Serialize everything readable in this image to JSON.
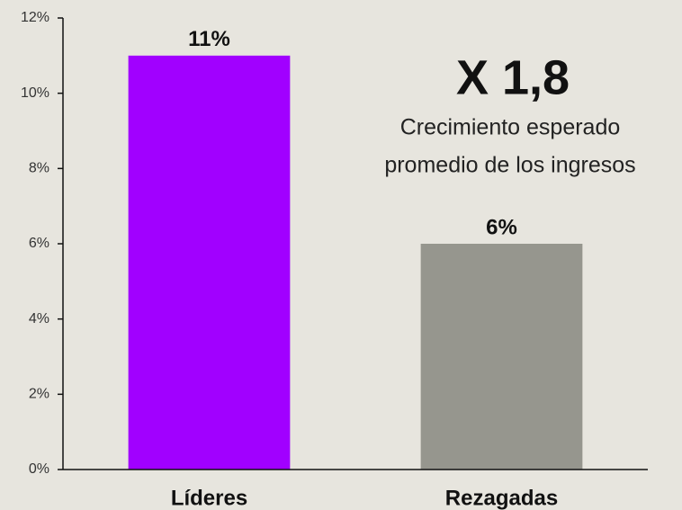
{
  "chart_data": {
    "type": "bar",
    "categories": [
      "Líderes",
      "Rezagadas"
    ],
    "values": [
      11,
      6
    ],
    "value_labels": [
      "11%",
      "6%"
    ],
    "colors": [
      "#a100ff",
      "#96968e"
    ],
    "ylim": [
      0,
      12
    ],
    "yticks": [
      {
        "value": 0,
        "label": "0%"
      },
      {
        "value": 2,
        "label": "2%"
      },
      {
        "value": 4,
        "label": "4%"
      },
      {
        "value": 6,
        "label": "6%"
      },
      {
        "value": 8,
        "label": "8%"
      },
      {
        "value": 10,
        "label": "10%"
      },
      {
        "value": 12,
        "label": "12%"
      }
    ],
    "annotation": {
      "headline": "X 1,8",
      "lines": [
        "Crecimiento esperado",
        "promedio de los ingresos"
      ]
    }
  }
}
